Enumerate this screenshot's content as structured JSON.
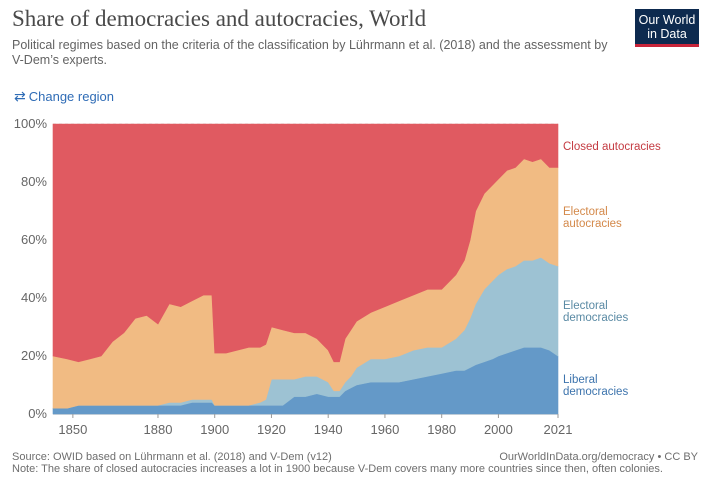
{
  "header": {
    "title": "Share of democracies and autocracies, World",
    "subtitle": "Political regimes based on the criteria of the classification by Lührmann et al. (2018) and the assessment by V-Dem’s experts.",
    "logo_line1": "Our World",
    "logo_line2": "in Data",
    "change_region": "Change region"
  },
  "footer": {
    "source": "Source: OWID based on Lührmann et al. (2018) and V-Dem (v12)",
    "note": "Note: The share of closed autocracies increases a lot in 1900 because V-Dem covers many more countries since then, often colonies.",
    "link": "OurWorldInData.org/democracy",
    "license": "• CC BY"
  },
  "colors": {
    "closed_autocracies": "#e05a61",
    "electoral_autocracies": "#f1bb83",
    "electoral_democracies": "#9dc2d3",
    "liberal_democracies": "#6499c8",
    "label_closed": "#c43b42",
    "label_electoral_aut": "#d4894a",
    "label_electoral_dem": "#5a8aa4",
    "label_liberal": "#3d74ad",
    "grid": "#dddddd",
    "axis_text": "#666666"
  },
  "chart_data": {
    "type": "area",
    "stacked": true,
    "title": "Share of democracies and autocracies, World",
    "xlabel": "",
    "ylabel": "",
    "xlim": [
      1843,
      2021
    ],
    "ylim": [
      0,
      100
    ],
    "x_ticks": [
      "1850",
      "1880",
      "1900",
      "1920",
      "1940",
      "1960",
      "1980",
      "2000",
      "2021"
    ],
    "y_ticks": [
      "0%",
      "20%",
      "40%",
      "60%",
      "80%",
      "100%"
    ],
    "grid": true,
    "legend": "right-inline",
    "x": [
      1843,
      1848,
      1852,
      1856,
      1860,
      1864,
      1868,
      1872,
      1876,
      1880,
      1884,
      1888,
      1892,
      1896,
      1899,
      1900,
      1904,
      1908,
      1912,
      1916,
      1918,
      1920,
      1924,
      1928,
      1932,
      1936,
      1940,
      1942,
      1944,
      1946,
      1948,
      1950,
      1955,
      1960,
      1965,
      1970,
      1975,
      1980,
      1985,
      1988,
      1990,
      1992,
      1995,
      1998,
      2000,
      2003,
      2006,
      2009,
      2012,
      2015,
      2018,
      2021
    ],
    "series": [
      {
        "name": "Liberal democracies",
        "values": [
          2,
          2,
          3,
          3,
          3,
          3,
          3,
          3,
          3,
          3,
          3,
          3,
          4,
          4,
          4,
          3,
          3,
          3,
          3,
          3,
          3,
          3,
          3,
          6,
          6,
          7,
          6,
          6,
          6,
          8,
          9,
          10,
          11,
          11,
          11,
          12,
          13,
          14,
          15,
          15,
          16,
          17,
          18,
          19,
          20,
          21,
          22,
          23,
          23,
          23,
          22,
          20
        ]
      },
      {
        "name": "Electoral democracies",
        "values": [
          0,
          0,
          0,
          0,
          0,
          0,
          0,
          0,
          0,
          0,
          1,
          1,
          1,
          1,
          1,
          0,
          0,
          0,
          0,
          1,
          2,
          9,
          9,
          6,
          7,
          6,
          5,
          2,
          2,
          3,
          4,
          6,
          8,
          8,
          9,
          10,
          10,
          9,
          11,
          14,
          17,
          21,
          25,
          27,
          28,
          29,
          29,
          30,
          30,
          31,
          30,
          31
        ]
      },
      {
        "name": "Electoral autocracies",
        "values": [
          18,
          17,
          15,
          16,
          17,
          22,
          25,
          30,
          31,
          28,
          34,
          33,
          34,
          36,
          36,
          18,
          18,
          19,
          20,
          19,
          19,
          18,
          17,
          16,
          15,
          13,
          11,
          10,
          10,
          15,
          16,
          16,
          16,
          18,
          19,
          19,
          20,
          20,
          22,
          24,
          27,
          32,
          33,
          33,
          33,
          34,
          34,
          35,
          34,
          34,
          33,
          34
        ]
      },
      {
        "name": "Closed autocracies",
        "values": [
          80,
          81,
          82,
          81,
          80,
          75,
          72,
          67,
          66,
          69,
          62,
          63,
          61,
          59,
          59,
          79,
          79,
          78,
          77,
          77,
          76,
          70,
          71,
          72,
          72,
          74,
          78,
          82,
          82,
          74,
          71,
          68,
          65,
          63,
          61,
          59,
          57,
          57,
          52,
          47,
          40,
          30,
          24,
          21,
          19,
          16,
          15,
          12,
          13,
          12,
          15,
          15
        ]
      }
    ],
    "labels": [
      {
        "series": "Closed autocracies",
        "lines": [
          "Closed autocracies"
        ]
      },
      {
        "series": "Electoral autocracies",
        "lines": [
          "Electoral",
          "autocracies"
        ]
      },
      {
        "series": "Electoral democracies",
        "lines": [
          "Electoral",
          "democracies"
        ]
      },
      {
        "series": "Liberal democracies",
        "lines": [
          "Liberal",
          "democracies"
        ]
      }
    ]
  }
}
